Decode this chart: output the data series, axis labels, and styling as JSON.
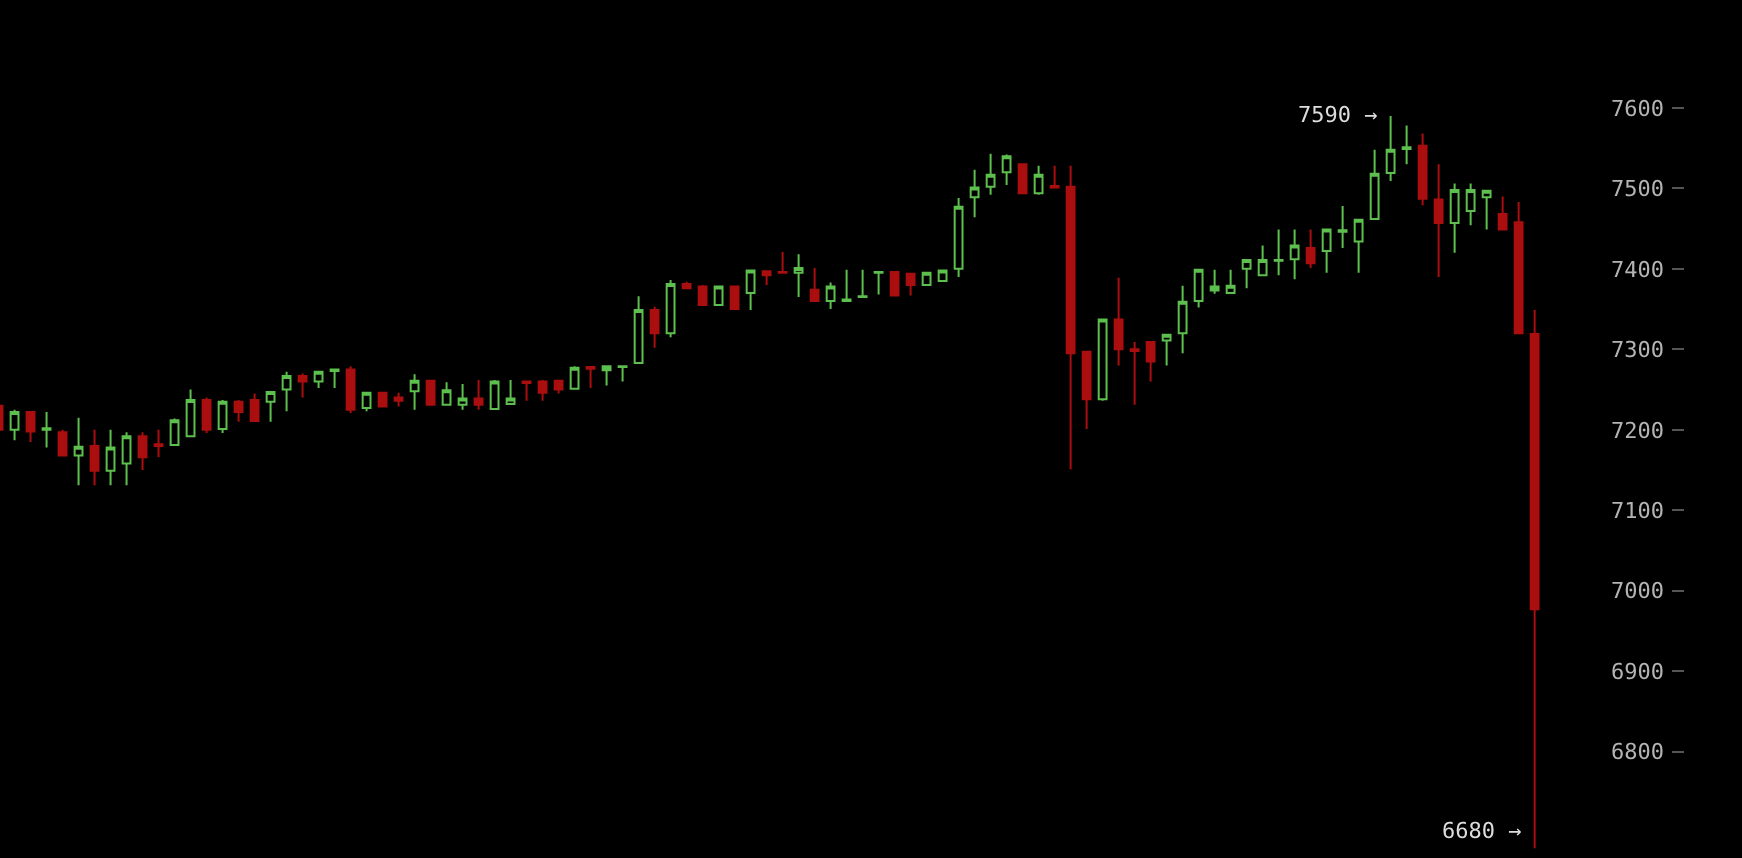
{
  "chart_data": {
    "type": "candlestick",
    "categories": [
      null,
      null,
      null,
      null,
      null,
      null,
      null,
      null,
      null,
      null,
      null,
      null,
      null,
      null,
      null,
      null,
      null,
      null,
      null,
      null,
      null,
      null,
      null,
      null,
      null,
      null,
      null,
      null,
      null,
      null,
      null,
      null,
      null,
      null,
      null,
      null,
      null,
      null,
      null,
      null,
      null,
      null,
      null,
      null,
      null,
      null,
      null,
      null,
      null,
      null,
      null,
      null,
      null,
      null,
      null,
      null,
      null,
      null,
      null,
      null,
      null,
      null,
      null,
      null,
      null,
      null,
      null,
      null,
      null,
      null,
      null,
      null,
      null,
      null,
      null,
      null,
      null,
      null,
      null,
      null,
      null,
      null,
      null,
      null,
      null,
      null,
      null,
      null,
      null,
      null,
      null,
      null,
      null,
      null,
      null,
      null,
      null
    ],
    "ohlc": [
      [
        7230,
        7235,
        7195,
        7200
      ],
      [
        7200,
        7225,
        7187,
        7222
      ],
      [
        7222,
        7222,
        7185,
        7198
      ],
      [
        7200,
        7222,
        7178,
        7202
      ],
      [
        7197,
        7200,
        7168,
        7168
      ],
      [
        7168,
        7215,
        7131,
        7179
      ],
      [
        7180,
        7200,
        7131,
        7149
      ],
      [
        7149,
        7200,
        7131,
        7178
      ],
      [
        7158,
        7197,
        7131,
        7192
      ],
      [
        7192,
        7197,
        7150,
        7166
      ],
      [
        7182,
        7200,
        7166,
        7180
      ],
      [
        7181,
        7214,
        7180,
        7212
      ],
      [
        7192,
        7250,
        7191,
        7237
      ],
      [
        7237,
        7240,
        7196,
        7200
      ],
      [
        7201,
        7237,
        7196,
        7235
      ],
      [
        7235,
        7237,
        7210,
        7222
      ],
      [
        7237,
        7245,
        7211,
        7211
      ],
      [
        7235,
        7247,
        7210,
        7247
      ],
      [
        7250,
        7272,
        7223,
        7267
      ],
      [
        7267,
        7270,
        7240,
        7260
      ],
      [
        7260,
        7272,
        7252,
        7272
      ],
      [
        7273,
        7275,
        7252,
        7275
      ],
      [
        7275,
        7279,
        7221,
        7225
      ],
      [
        7227,
        7246,
        7223,
        7246
      ],
      [
        7246,
        7246,
        7229,
        7229
      ],
      [
        7240,
        7246,
        7229,
        7236
      ],
      [
        7248,
        7269,
        7225,
        7261
      ],
      [
        7261,
        7261,
        7231,
        7231
      ],
      [
        7231,
        7259,
        7231,
        7249
      ],
      [
        7231,
        7257,
        7225,
        7239
      ],
      [
        7239,
        7262,
        7225,
        7231
      ],
      [
        7226,
        7262,
        7226,
        7260
      ],
      [
        7232,
        7262,
        7231,
        7239
      ],
      [
        7260,
        7261,
        7236,
        7258
      ],
      [
        7260,
        7262,
        7236,
        7246
      ],
      [
        7261,
        7262,
        7245,
        7250
      ],
      [
        7251,
        7279,
        7250,
        7277
      ],
      [
        7278,
        7279,
        7252,
        7276
      ],
      [
        7274,
        7279,
        7255,
        7279
      ],
      [
        7278,
        7279,
        7260,
        7279
      ],
      [
        7283,
        7366,
        7283,
        7349
      ],
      [
        7349,
        7353,
        7302,
        7320
      ],
      [
        7320,
        7386,
        7315,
        7381
      ],
      [
        7381,
        7384,
        7375,
        7376
      ],
      [
        7378,
        7380,
        7355,
        7355
      ],
      [
        7355,
        7378,
        7355,
        7378
      ],
      [
        7378,
        7379,
        7350,
        7350
      ],
      [
        7370,
        7398,
        7349,
        7398
      ],
      [
        7397,
        7397,
        7380,
        7392
      ],
      [
        7396,
        7421,
        7394,
        7395
      ],
      [
        7395,
        7418,
        7365,
        7401
      ],
      [
        7374,
        7401,
        7360,
        7360
      ],
      [
        7360,
        7383,
        7350,
        7378
      ],
      [
        7360,
        7399,
        7360,
        7362
      ],
      [
        7365,
        7399,
        7365,
        7366
      ],
      [
        7395,
        7396,
        7368,
        7396
      ],
      [
        7396,
        7396,
        7367,
        7367
      ],
      [
        7394,
        7394,
        7367,
        7380
      ],
      [
        7380,
        7395,
        7380,
        7395
      ],
      [
        7385,
        7398,
        7385,
        7398
      ],
      [
        7400,
        7488,
        7390,
        7477
      ],
      [
        7489,
        7523,
        7464,
        7501
      ],
      [
        7502,
        7543,
        7492,
        7517
      ],
      [
        7520,
        7542,
        7504,
        7540
      ],
      [
        7530,
        7530,
        7494,
        7494
      ],
      [
        7494,
        7528,
        7492,
        7517
      ],
      [
        7503,
        7528,
        7501,
        7501
      ],
      [
        7502,
        7528,
        7151,
        7295
      ],
      [
        7297,
        7297,
        7201,
        7238
      ],
      [
        7238,
        7337,
        7236,
        7337
      ],
      [
        7337,
        7389,
        7280,
        7300
      ],
      [
        7300,
        7309,
        7231,
        7298
      ],
      [
        7309,
        7309,
        7260,
        7285
      ],
      [
        7311,
        7318,
        7280,
        7318
      ],
      [
        7320,
        7379,
        7295,
        7359
      ],
      [
        7360,
        7399,
        7352,
        7399
      ],
      [
        7373,
        7399,
        7369,
        7378
      ],
      [
        7370,
        7399,
        7370,
        7379
      ],
      [
        7400,
        7411,
        7376,
        7411
      ],
      [
        7392,
        7429,
        7392,
        7411
      ],
      [
        7410,
        7449,
        7392,
        7411
      ],
      [
        7412,
        7449,
        7387,
        7429
      ],
      [
        7426,
        7449,
        7401,
        7407
      ],
      [
        7422,
        7449,
        7395,
        7449
      ],
      [
        7446,
        7478,
        7426,
        7448
      ],
      [
        7434,
        7461,
        7395,
        7461
      ],
      [
        7462,
        7548,
        7462,
        7518
      ],
      [
        7519,
        7590,
        7509,
        7548
      ],
      [
        7549,
        7578,
        7530,
        7551
      ],
      [
        7553,
        7568,
        7479,
        7487
      ],
      [
        7486,
        7530,
        7390,
        7457
      ],
      [
        7457,
        7506,
        7420,
        7498
      ],
      [
        7472,
        7506,
        7454,
        7498
      ],
      [
        7489,
        7497,
        7449,
        7497
      ],
      [
        7468,
        7490,
        7449,
        7449
      ],
      [
        7458,
        7483,
        7320,
        7320
      ],
      [
        7319,
        7349,
        6680,
        6977
      ]
    ],
    "colors": [
      "#aa0e0e",
      "#5dbf4d",
      "#aa0e0e",
      "#5dbf4d",
      "#aa0e0e",
      "#5dbf4d",
      "#aa0e0e",
      "#5dbf4d",
      "#5dbf4d",
      "#aa0e0e",
      "#aa0e0e",
      "#5dbf4d",
      "#5dbf4d",
      "#aa0e0e",
      "#5dbf4d",
      "#aa0e0e",
      "#aa0e0e",
      "#5dbf4d",
      "#5dbf4d",
      "#aa0e0e",
      "#5dbf4d",
      "#5dbf4d",
      "#aa0e0e",
      "#5dbf4d",
      "#aa0e0e",
      "#aa0e0e",
      "#5dbf4d",
      "#aa0e0e",
      "#5dbf4d",
      "#5dbf4d",
      "#aa0e0e",
      "#5dbf4d",
      "#5dbf4d",
      "#aa0e0e",
      "#aa0e0e",
      "#aa0e0e",
      "#5dbf4d",
      "#aa0e0e",
      "#5dbf4d",
      "#5dbf4d",
      "#5dbf4d",
      "#aa0e0e",
      "#5dbf4d",
      "#aa0e0e",
      "#aa0e0e",
      "#5dbf4d",
      "#aa0e0e",
      "#5dbf4d",
      "#aa0e0e",
      "#aa0e0e",
      "#5dbf4d",
      "#aa0e0e",
      "#5dbf4d",
      "#5dbf4d",
      "#5dbf4d",
      "#5dbf4d",
      "#aa0e0e",
      "#aa0e0e",
      "#5dbf4d",
      "#5dbf4d",
      "#5dbf4d",
      "#5dbf4d",
      "#5dbf4d",
      "#5dbf4d",
      "#aa0e0e",
      "#5dbf4d",
      "#aa0e0e",
      "#aa0e0e",
      "#aa0e0e",
      "#5dbf4d",
      "#aa0e0e",
      "#aa0e0e",
      "#aa0e0e",
      "#5dbf4d",
      "#5dbf4d",
      "#5dbf4d",
      "#5dbf4d",
      "#5dbf4d",
      "#5dbf4d",
      "#5dbf4d",
      "#5dbf4d",
      "#5dbf4d",
      "#aa0e0e",
      "#5dbf4d",
      "#5dbf4d",
      "#5dbf4d",
      "#5dbf4d",
      "#5dbf4d",
      "#5dbf4d",
      "#aa0e0e",
      "#aa0e0e",
      "#5dbf4d",
      "#5dbf4d",
      "#5dbf4d",
      "#aa0e0e",
      "#aa0e0e",
      "#aa0e0e"
    ],
    "ylim": [
      6668,
      7734
    ],
    "yticks": [
      6800,
      6900,
      7000,
      7100,
      7200,
      7300,
      7400,
      7500,
      7600
    ],
    "tick_labels": "y",
    "grid": false,
    "annotations": [
      "7590 →",
      "6680 →"
    ]
  }
}
